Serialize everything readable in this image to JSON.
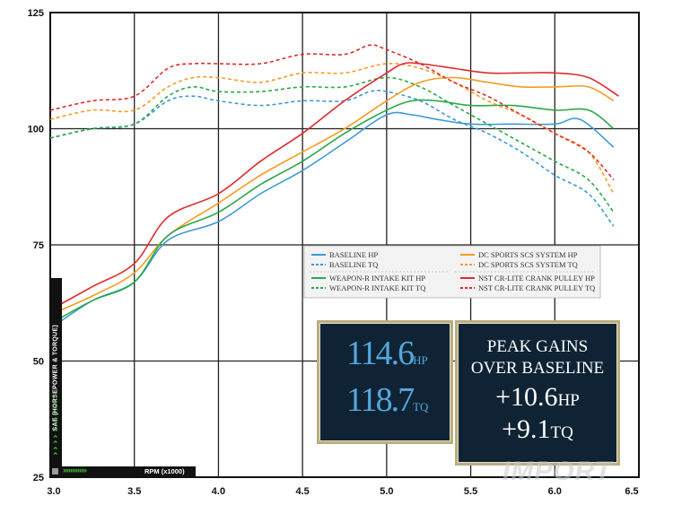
{
  "chart_data": {
    "type": "line",
    "title": "",
    "xlabel": "RPM (x1000)",
    "ylabel": "SAE (HORSEPOWER & TORQUE)",
    "xlim": [
      3.0,
      6.5
    ],
    "ylim": [
      25,
      125
    ],
    "x_ticks": [
      "3.0",
      "3.5",
      "4.0",
      "4.5",
      "5.0",
      "5.5",
      "6.0",
      "6.5"
    ],
    "y_ticks": [
      "125",
      "100",
      "75",
      "50",
      "25"
    ],
    "grid": true,
    "legend_position": "center-right",
    "series": [
      {
        "name": "BASELINE HP",
        "color": "#3d9ad6",
        "dash": false,
        "x": [
          3.0,
          3.25,
          3.5,
          3.7,
          4.0,
          4.25,
          4.5,
          4.75,
          5.0,
          5.15,
          5.3,
          5.5,
          5.75,
          6.0,
          6.15,
          6.35
        ],
        "y": [
          57,
          63,
          67,
          76,
          80,
          86,
          91,
          97,
          103,
          103,
          102,
          101,
          101,
          101,
          102,
          96
        ]
      },
      {
        "name": "BASELINE TQ",
        "color": "#3d9ad6",
        "dash": true,
        "x": [
          3.0,
          3.25,
          3.5,
          3.7,
          3.85,
          4.0,
          4.25,
          4.5,
          4.75,
          4.9,
          5.0,
          5.2,
          5.4,
          5.6,
          5.8,
          6.0,
          6.2,
          6.35
        ],
        "y": [
          98,
          100,
          101,
          106,
          107,
          106,
          105,
          106,
          106,
          108,
          108,
          106,
          102,
          99,
          95,
          90,
          86,
          79
        ]
      },
      {
        "name": "DC SPORTS SCS SYSTEM HP",
        "color": "#f59c22",
        "dash": false,
        "x": [
          3.0,
          3.25,
          3.5,
          3.7,
          4.0,
          4.25,
          4.5,
          4.75,
          5.0,
          5.2,
          5.4,
          5.6,
          5.8,
          6.0,
          6.2,
          6.35
        ],
        "y": [
          60,
          64,
          69,
          77,
          84,
          90,
          95,
          100,
          106,
          110,
          111,
          110,
          109,
          109,
          109,
          106
        ]
      },
      {
        "name": "DC SPORTS SCS SYSTEM TQ",
        "color": "#f59c22",
        "dash": true,
        "x": [
          3.0,
          3.25,
          3.5,
          3.7,
          3.85,
          4.0,
          4.25,
          4.5,
          4.75,
          5.0,
          5.2,
          5.4,
          5.6,
          5.8,
          6.0,
          6.2,
          6.35
        ],
        "y": [
          102,
          104,
          104,
          109,
          111,
          111,
          110,
          112,
          112,
          114,
          113,
          110,
          106,
          103,
          99,
          95,
          86
        ]
      },
      {
        "name": "WEAPON-R INTAKE KIT HP",
        "color": "#2aa84a",
        "dash": false,
        "x": [
          3.0,
          3.25,
          3.5,
          3.7,
          4.0,
          4.25,
          4.5,
          4.75,
          5.0,
          5.15,
          5.3,
          5.5,
          5.75,
          6.0,
          6.2,
          6.35
        ],
        "y": [
          58,
          63,
          67,
          77,
          82,
          88,
          93,
          99,
          104,
          106,
          106,
          105,
          105,
          104,
          104,
          100
        ]
      },
      {
        "name": "WEAPON-R INTAKE KIT TQ",
        "color": "#2aa84a",
        "dash": true,
        "x": [
          3.0,
          3.25,
          3.5,
          3.7,
          3.85,
          4.0,
          4.25,
          4.5,
          4.75,
          5.0,
          5.2,
          5.4,
          5.6,
          5.8,
          6.0,
          6.2,
          6.35
        ],
        "y": [
          98,
          100,
          101,
          107,
          109,
          108,
          108,
          109,
          109,
          111,
          109,
          105,
          101,
          97,
          93,
          89,
          82
        ]
      },
      {
        "name": "NST CR-LITE CRANK PULLEY HP",
        "color": "#e02b2b",
        "dash": false,
        "x": [
          3.0,
          3.25,
          3.5,
          3.7,
          4.0,
          4.25,
          4.5,
          4.75,
          5.0,
          5.1,
          5.2,
          5.4,
          5.6,
          5.8,
          6.0,
          6.2,
          6.38
        ],
        "y": [
          61,
          66,
          71,
          81,
          86,
          93,
          99,
          106,
          112,
          114,
          114,
          113,
          112,
          112,
          112,
          111,
          107
        ]
      },
      {
        "name": "NST CR-LITE CRANK PULLEY TQ",
        "color": "#e02b2b",
        "dash": true,
        "x": [
          3.0,
          3.25,
          3.5,
          3.7,
          3.85,
          4.0,
          4.25,
          4.5,
          4.75,
          4.9,
          5.0,
          5.2,
          5.4,
          5.6,
          5.8,
          6.0,
          6.2,
          6.35
        ],
        "y": [
          104,
          106,
          107,
          113,
          114,
          114,
          114,
          116,
          116,
          118,
          117,
          114,
          110,
          107,
          103,
          99,
          95,
          89
        ]
      }
    ]
  },
  "callout_left": {
    "hp_value": "114.6",
    "hp_unit": "HP",
    "tq_value": "118.7",
    "tq_unit": "TQ"
  },
  "callout_right": {
    "line1": "PEAK GAINS",
    "line2": "OVER BASELINE",
    "hp_value": "+10.6",
    "hp_unit": "HP",
    "tq_value": "+9.1",
    "tq_unit": "TQ"
  },
  "axis_title_y": "SAE (HORSEPOWER & TORQUE)",
  "axis_title_x": "RPM (x1000)",
  "watermark": "IMPORT"
}
